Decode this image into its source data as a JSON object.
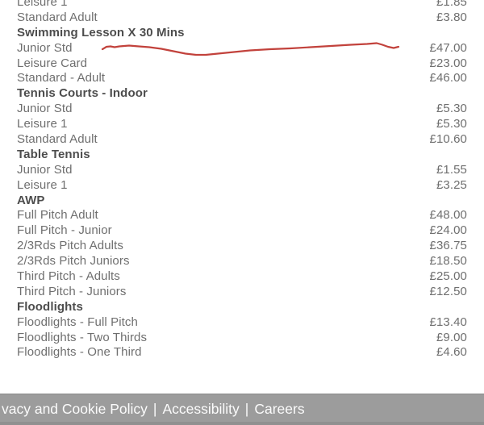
{
  "page": {
    "background": "#ffffff"
  },
  "price_list": {
    "item_text_color": "#6f6f6f",
    "header_text_color": "#4d4d4d",
    "rows": [
      {
        "label": "Leisure 1",
        "price": "£1.85",
        "type": "item"
      },
      {
        "label": "Standard Adult",
        "price": "£3.80",
        "type": "item"
      },
      {
        "label": "Swimming Lesson X 30 Mins",
        "price": "",
        "type": "header"
      },
      {
        "label": "Junior Std",
        "price": "£47.00",
        "type": "item",
        "annotated": true
      },
      {
        "label": "Leisure Card",
        "price": "£23.00",
        "type": "item"
      },
      {
        "label": "Standard - Adult",
        "price": "£46.00",
        "type": "item"
      },
      {
        "label": "Tennis Courts - Indoor",
        "price": "",
        "type": "header"
      },
      {
        "label": "Junior Std",
        "price": "£5.30",
        "type": "item"
      },
      {
        "label": "Leisure 1",
        "price": "£5.30",
        "type": "item"
      },
      {
        "label": "Standard Adult",
        "price": "£10.60",
        "type": "item"
      },
      {
        "label": "Table Tennis",
        "price": "",
        "type": "header"
      },
      {
        "label": "Junior Std",
        "price": "£1.55",
        "type": "item"
      },
      {
        "label": "Leisure 1",
        "price": "£3.25",
        "type": "item"
      },
      {
        "label": "AWP",
        "price": "",
        "type": "header"
      },
      {
        "label": "Full Pitch Adult",
        "price": "£48.00",
        "type": "item"
      },
      {
        "label": "Full Pitch - Junior",
        "price": "£24.00",
        "type": "item"
      },
      {
        "label": "2/3Rds Pitch Adults",
        "price": "£36.75",
        "type": "item"
      },
      {
        "label": "2/3Rds Pitch Juniors",
        "price": "£18.50",
        "type": "item"
      },
      {
        "label": "Third Pitch - Adults",
        "price": "£25.00",
        "type": "item"
      },
      {
        "label": "Third Pitch - Juniors",
        "price": "£12.50",
        "type": "item"
      },
      {
        "label": "Floodlights",
        "price": "",
        "type": "header"
      },
      {
        "label": "Floodlights - Full Pitch",
        "price": "£13.40",
        "type": "item"
      },
      {
        "label": "Floodlights - Two Thirds",
        "price": "£9.00",
        "type": "item"
      },
      {
        "label": "Floodlights - One Third",
        "price": "£4.60",
        "type": "item"
      }
    ]
  },
  "annotation": {
    "kind": "red-scribble-line",
    "color": "#c2423c"
  },
  "footer": {
    "background": "#9c9c9c",
    "text_color": "#fbfbfb",
    "separator": "|",
    "links": [
      {
        "label": "vacy and Cookie Policy"
      },
      {
        "label": "Accessibility"
      },
      {
        "label": "Careers"
      }
    ]
  }
}
